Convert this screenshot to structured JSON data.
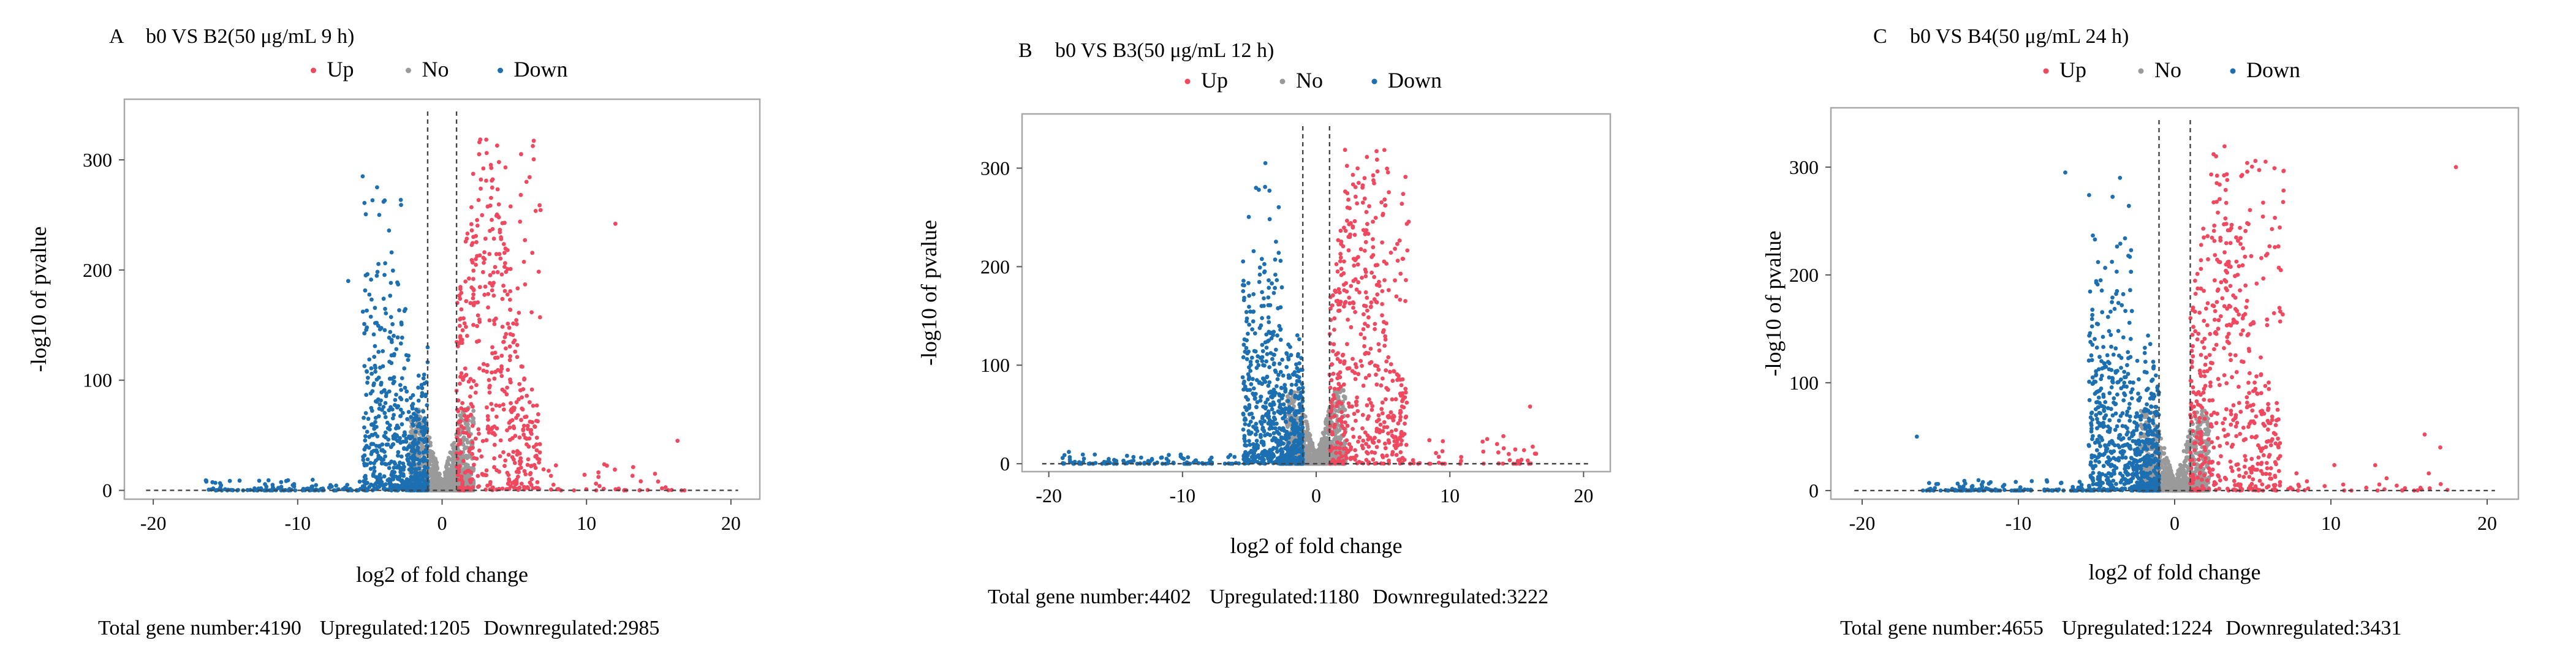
{
  "colors": {
    "up": "#f0485e",
    "no": "#9a9a9a",
    "down": "#1c6fb0",
    "frame": "#a8a8a8",
    "threshold": "#444444"
  },
  "legend": {
    "up": "Up",
    "no": "No",
    "down": "Down"
  },
  "chart_data": [
    {
      "type": "scatter",
      "panel": "A",
      "title": "b0 VS B2(50 μg/mL  9 h)",
      "xlabel": "log2 of fold change",
      "ylabel": "-log10 of pvalue",
      "xlim": [
        -22,
        22
      ],
      "ylim": [
        -8,
        355
      ],
      "xticks": [
        -20,
        -10,
        0,
        10,
        20
      ],
      "yticks": [
        0,
        100,
        200,
        300
      ],
      "fc_threshold": [
        -1,
        1
      ],
      "p_threshold": 0,
      "counts": {
        "total": 4190,
        "up": 1205,
        "down": 2985
      },
      "down_max_x": -16.5,
      "up_max_x": 17,
      "down_peak": 285,
      "up_peak": 322,
      "outliers": [
        {
          "x": -5.5,
          "y": 285,
          "g": "down"
        },
        {
          "x": -4.5,
          "y": 275,
          "g": "down"
        },
        {
          "x": -6.5,
          "y": 190,
          "g": "down"
        },
        {
          "x": 12,
          "y": 242,
          "g": "up"
        },
        {
          "x": 16.3,
          "y": 45,
          "g": "up"
        }
      ],
      "summary": {
        "total_label": "Total gene number:",
        "total": "4190",
        "up_label": "Upregulated:",
        "up": "1205",
        "down_label": "Downregulated:",
        "down": "2985"
      }
    },
    {
      "type": "scatter",
      "panel": "B",
      "title": "b0 VS B3(50 μg/mL  12 h)",
      "xlabel": "log2 of fold change",
      "ylabel": "-log10 of pvalue",
      "xlim": [
        -22,
        22
      ],
      "ylim": [
        -8,
        355
      ],
      "xticks": [
        -20,
        -10,
        0,
        10,
        20
      ],
      "yticks": [
        0,
        100,
        200,
        300
      ],
      "fc_threshold": [
        -1,
        1
      ],
      "p_threshold": 0,
      "counts": {
        "total": 4402,
        "up": 1180,
        "down": 3222
      },
      "down_max_x": -19,
      "up_max_x": 16.5,
      "down_peak": 305,
      "up_peak": 320,
      "outliers": [
        {
          "x": -3.8,
          "y": 305,
          "g": "down"
        },
        {
          "x": -4.5,
          "y": 280,
          "g": "down"
        },
        {
          "x": -18.5,
          "y": 12,
          "g": "down"
        },
        {
          "x": 16,
          "y": 58,
          "g": "up"
        },
        {
          "x": 14,
          "y": 28,
          "g": "up"
        }
      ],
      "summary": {
        "total_label": "Total gene number:",
        "total": "4402",
        "up_label": "Upregulated:",
        "up": "1180",
        "down_label": "Downregulated:",
        "down": "3222"
      }
    },
    {
      "type": "scatter",
      "panel": "C",
      "title": "b0 VS B4(50 μg/mL  24 h)",
      "xlabel": "log2 of fold change",
      "ylabel": "-log10 of pvalue",
      "xlim": [
        -22,
        22
      ],
      "ylim": [
        -8,
        355
      ],
      "xticks": [
        -20,
        -10,
        0,
        10,
        20
      ],
      "yticks": [
        0,
        100,
        200,
        300
      ],
      "fc_threshold": [
        -1,
        1
      ],
      "p_threshold": 0,
      "counts": {
        "total": 4655,
        "up": 1224,
        "down": 3431
      },
      "down_max_x": -16.5,
      "up_max_x": 18,
      "down_peak": 295,
      "up_peak": 320,
      "outliers": [
        {
          "x": -7,
          "y": 295,
          "g": "down"
        },
        {
          "x": -3.5,
          "y": 290,
          "g": "down"
        },
        {
          "x": -16.5,
          "y": 50,
          "g": "down"
        },
        {
          "x": 18,
          "y": 300,
          "g": "up"
        },
        {
          "x": 16,
          "y": 52,
          "g": "up"
        },
        {
          "x": 17,
          "y": 40,
          "g": "up"
        }
      ],
      "summary": {
        "total_label": "Total gene number:",
        "total": "4655",
        "up_label": "Upregulated:",
        "up": "1224",
        "down_label": "Downregulated:",
        "down": "3431"
      }
    }
  ]
}
